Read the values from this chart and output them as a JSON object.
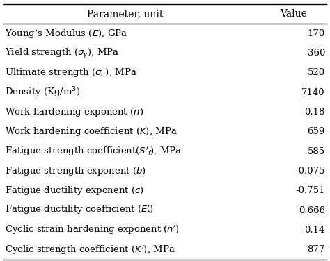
{
  "col_headers": [
    "Parameter, unit",
    "Value"
  ],
  "param_labels": [
    "Young’s Modulus ($E$), GPa",
    "Yield strength ($\\sigma_y$), MPa",
    "Ultimate strength ($\\sigma_u$), MPa",
    "Density (Kg/m$^3$)",
    "Work hardening exponent ($n$)",
    "Work hardening coefficient ($K$), MPa",
    "Fatigue strength coefficient($S'_f$), MPa",
    "Fatigue strength exponent ($b$)",
    "Fatigue ductility exponent ($c$)",
    "Fatigue ductility coefficient ($E_f'$)",
    "Cyclic strain hardening exponent ($n'$)",
    "Cyclic strength coefficient ($K'$), MPa"
  ],
  "values": [
    "170",
    "360",
    "520",
    "7140",
    "0.18",
    "659",
    "585",
    "-0.075",
    "-0.751",
    "0.666",
    "0.14",
    "877"
  ],
  "header_line_color": "#000000",
  "text_color": "#000000",
  "bg_color": "#ffffff",
  "font_size": 9.5,
  "header_font_size": 10.0,
  "fig_width": 4.74,
  "fig_height": 3.76,
  "dpi": 100
}
